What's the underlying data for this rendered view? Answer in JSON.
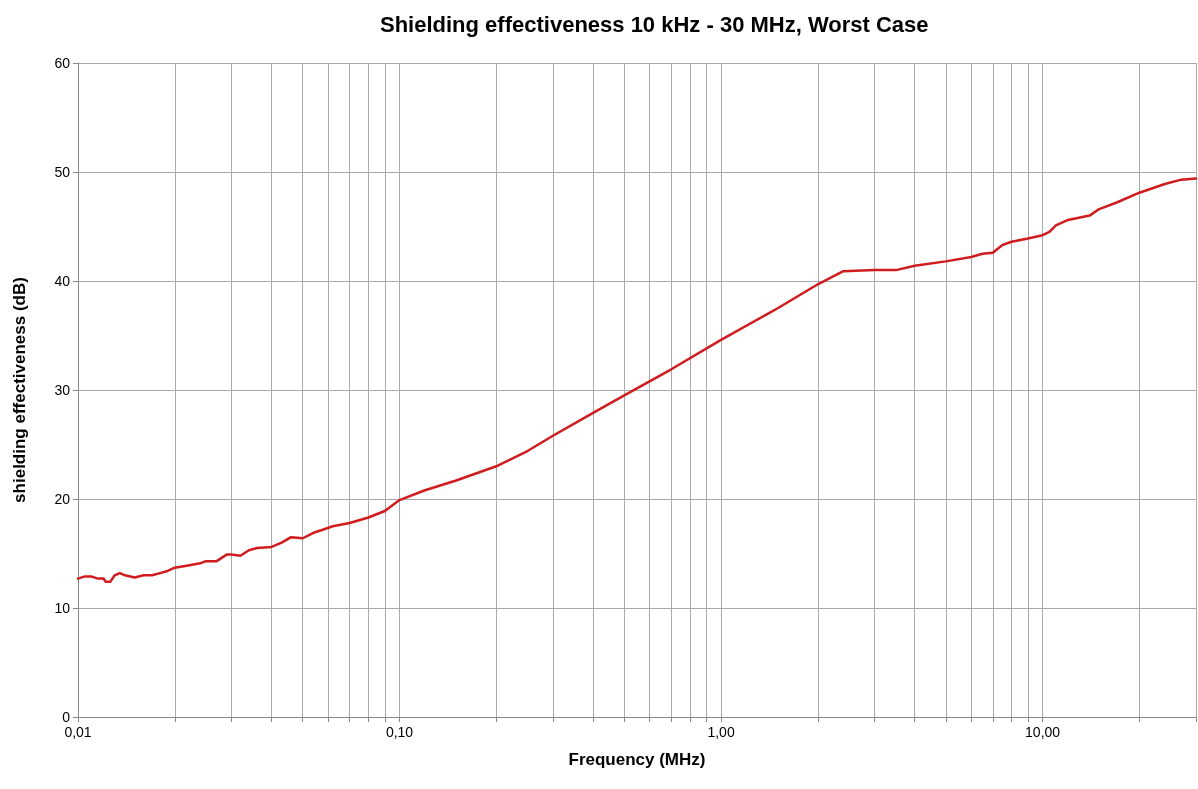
{
  "chart_data": {
    "type": "line",
    "title": "Shielding effectiveness 10 kHz - 30 MHz, Worst Case",
    "xlabel": "Frequency (MHz)",
    "ylabel": "shielding effectiveness (dB)",
    "log": "x",
    "grid": true,
    "marker": "none",
    "line_style": "solid",
    "xlim": [
      0.01,
      30
    ],
    "ylim": [
      0,
      60
    ],
    "xticks": [
      {
        "value": 0.01,
        "label": "0,01"
      },
      {
        "value": 0.02,
        "label": null
      },
      {
        "value": 0.03,
        "label": null
      },
      {
        "value": 0.04,
        "label": null
      },
      {
        "value": 0.05,
        "label": null
      },
      {
        "value": 0.06,
        "label": null
      },
      {
        "value": 0.07,
        "label": null
      },
      {
        "value": 0.08,
        "label": null
      },
      {
        "value": 0.09,
        "label": null
      },
      {
        "value": 0.1,
        "label": "0,10"
      },
      {
        "value": 0.2,
        "label": null
      },
      {
        "value": 0.3,
        "label": null
      },
      {
        "value": 0.4,
        "label": null
      },
      {
        "value": 0.5,
        "label": null
      },
      {
        "value": 0.6,
        "label": null
      },
      {
        "value": 0.7,
        "label": null
      },
      {
        "value": 0.8,
        "label": null
      },
      {
        "value": 0.9,
        "label": null
      },
      {
        "value": 1,
        "label": "1,00"
      },
      {
        "value": 2,
        "label": null
      },
      {
        "value": 3,
        "label": null
      },
      {
        "value": 4,
        "label": null
      },
      {
        "value": 5,
        "label": null
      },
      {
        "value": 6,
        "label": null
      },
      {
        "value": 7,
        "label": null
      },
      {
        "value": 8,
        "label": null
      },
      {
        "value": 9,
        "label": null
      },
      {
        "value": 10,
        "label": "10,00"
      },
      {
        "value": 20,
        "label": null
      },
      {
        "value": 30,
        "label": null
      }
    ],
    "yticks": [
      0,
      10,
      20,
      30,
      40,
      50,
      60
    ],
    "series": [
      {
        "color": "#d01c1f",
        "x": [
          0.01,
          0.0105,
          0.011,
          0.0115,
          0.012,
          0.0122,
          0.0126,
          0.013,
          0.0135,
          0.014,
          0.015,
          0.016,
          0.017,
          0.018,
          0.019,
          0.02,
          0.022,
          0.024,
          0.025,
          0.027,
          0.029,
          0.03,
          0.032,
          0.034,
          0.036,
          0.04,
          0.043,
          0.046,
          0.05,
          0.054,
          0.058,
          0.062,
          0.07,
          0.08,
          0.09,
          0.1,
          0.12,
          0.15,
          0.2,
          0.25,
          0.3,
          0.4,
          0.5,
          0.7,
          1,
          1.5,
          2,
          2.4,
          3,
          3.5,
          4,
          5,
          6,
          6.5,
          7,
          7.5,
          8,
          9,
          10,
          10.5,
          11,
          12,
          14,
          15,
          17,
          20,
          24,
          27,
          30
        ],
        "values": [
          12.7,
          12.9,
          12.9,
          12.7,
          12.7,
          12.4,
          12.4,
          13.0,
          13.2,
          13.0,
          12.8,
          13.0,
          13.0,
          13.2,
          13.4,
          13.7,
          13.9,
          14.1,
          14.3,
          14.3,
          14.9,
          14.9,
          14.8,
          15.3,
          15.5,
          15.6,
          16.0,
          16.5,
          16.4,
          16.9,
          17.2,
          17.5,
          17.8,
          18.3,
          18.9,
          19.9,
          20.8,
          21.7,
          23.0,
          24.4,
          25.8,
          27.9,
          29.5,
          31.9,
          34.6,
          37.5,
          39.7,
          40.9,
          41.0,
          41.0,
          41.4,
          41.8,
          42.2,
          42.5,
          42.6,
          43.3,
          43.6,
          43.9,
          44.2,
          44.5,
          45.1,
          45.6,
          46.0,
          46.6,
          47.2,
          48.1,
          48.9,
          49.3,
          49.4
        ]
      }
    ]
  }
}
